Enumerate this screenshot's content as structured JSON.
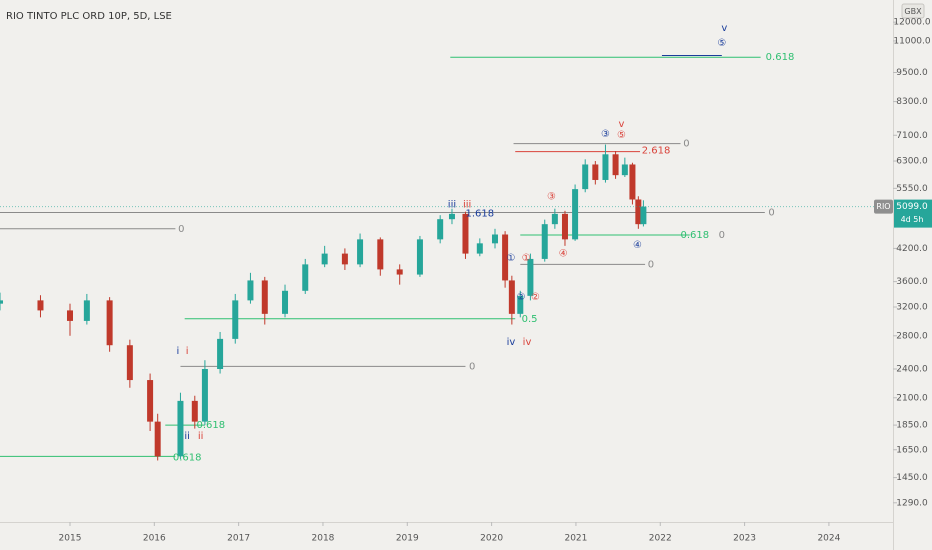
{
  "chart_data": {
    "type": "candlestick",
    "title": "RIO TINTO PLC ORD 10P, 5D, LSE",
    "symbol": "RIO",
    "currency": "GBX",
    "countdown": "4d 5h",
    "last_price": {
      "value": 5099,
      "label": "5099.0"
    },
    "log_scale": true,
    "up_color": "#26a69a",
    "down_color": "#c0392b",
    "x": [
      2014.17,
      2014.65,
      2015.0,
      2015.2,
      2015.47,
      2015.71,
      2015.95,
      2016.04,
      2016.31,
      2016.48,
      2016.6,
      2016.78,
      2016.96,
      2017.14,
      2017.31,
      2017.55,
      2017.79,
      2018.02,
      2018.26,
      2018.44,
      2018.68,
      2018.91,
      2019.15,
      2019.39,
      2019.53,
      2019.69,
      2019.86,
      2020.04,
      2020.16,
      2020.24,
      2020.34,
      2020.46,
      2020.63,
      2020.75,
      2020.87,
      2020.99,
      2021.11,
      2021.23,
      2021.35,
      2021.47,
      2021.58,
      2021.67,
      2021.74,
      2021.8
    ],
    "open": [
      3250,
      3300,
      3150,
      3000,
      3300,
      2680,
      2280,
      1880,
      1600,
      2070,
      1880,
      2400,
      2760,
      3300,
      3620,
      3100,
      3450,
      3900,
      4100,
      3900,
      4380,
      3810,
      3720,
      4380,
      4810,
      4930,
      4100,
      4300,
      4480,
      3620,
      3100,
      3370,
      4000,
      4700,
      4930,
      4380,
      5530,
      6200,
      5770,
      6500,
      5900,
      6200,
      5270,
      4700
    ],
    "high": [
      3420,
      3380,
      3250,
      3400,
      3350,
      2750,
      2350,
      1950,
      2150,
      2120,
      2500,
      2850,
      3400,
      3750,
      3680,
      3550,
      4000,
      4250,
      4200,
      4500,
      4420,
      3900,
      4450,
      4900,
      5050,
      4980,
      4400,
      4600,
      4550,
      3700,
      3450,
      4100,
      4800,
      5050,
      5000,
      5650,
      6350,
      6300,
      6800,
      6600,
      6400,
      6250,
      5350,
      5250
    ],
    "low": [
      3150,
      3050,
      2800,
      2950,
      2600,
      2200,
      1800,
      1570,
      1580,
      1820,
      1850,
      2350,
      2700,
      3250,
      2950,
      3050,
      3400,
      3850,
      3800,
      3850,
      3700,
      3550,
      3680,
      4300,
      4700,
      4000,
      4050,
      4200,
      3500,
      2950,
      3050,
      3300,
      3950,
      4600,
      4250,
      4350,
      5450,
      5650,
      5700,
      5800,
      5850,
      5150,
      4600,
      4650
    ],
    "close": [
      3300,
      3150,
      3000,
      3300,
      2680,
      2280,
      1880,
      1600,
      2070,
      1880,
      2400,
      2760,
      3300,
      3620,
      3100,
      3450,
      3900,
      4100,
      3900,
      4380,
      3810,
      3720,
      4380,
      4810,
      4930,
      4100,
      4300,
      4480,
      3620,
      3100,
      3370,
      4000,
      4700,
      4930,
      4380,
      5530,
      6200,
      5770,
      6500,
      5900,
      6200,
      5270,
      4700,
      5099
    ],
    "xlim": [
      2014.17,
      2024.76
    ],
    "xticks": [
      2015,
      2016,
      2017,
      2018,
      2019,
      2020,
      2021,
      2022,
      2023,
      2024
    ],
    "ylim": [
      1180,
      13300
    ],
    "yticks": [
      {
        "value": 1290,
        "label": "1290.0"
      },
      {
        "value": 1450,
        "label": "1450.0"
      },
      {
        "value": 1650,
        "label": "1650.0"
      },
      {
        "value": 1850,
        "label": "1850.0"
      },
      {
        "value": 2100,
        "label": "2100.0"
      },
      {
        "value": 2400,
        "label": "2400.0"
      },
      {
        "value": 2800,
        "label": "2800.0"
      },
      {
        "value": 3200,
        "label": "3200.0"
      },
      {
        "value": 3600,
        "label": "3600.0"
      },
      {
        "value": 4200,
        "label": "4200.0"
      },
      {
        "value": 5550,
        "label": "5550.0"
      },
      {
        "value": 6300,
        "label": "6300.0"
      },
      {
        "value": 7100,
        "label": "7100.0"
      },
      {
        "value": 8300,
        "label": "8300.0"
      },
      {
        "value": 9500,
        "label": "9500.0"
      },
      {
        "value": 11000,
        "label": "11000.0"
      },
      {
        "value": 12000,
        "label": "12000.0"
      }
    ],
    "levels": [
      {
        "x": [
          2019.51,
          2023.19
        ],
        "y": 10200,
        "color": "#2fbf71"
      },
      {
        "x": [
          2022.02,
          2022.73
        ],
        "y": 10280,
        "color": "#1a3d9b"
      },
      {
        "x": [
          2020.26,
          2022.24
        ],
        "y": 6830,
        "color": "#8a8a8a"
      },
      {
        "x": [
          2020.28,
          2021.76
        ],
        "y": 6580,
        "color": "#d9423a"
      },
      {
        "x": [
          2014.17,
          2023.24
        ],
        "y": 4960,
        "color": "#8a8a8a"
      },
      {
        "x": [
          2014.17,
          2016.25
        ],
        "y": 4600,
        "color": "#8a8a8a"
      },
      {
        "x": [
          2020.34,
          2022.35
        ],
        "y": 4470,
        "color": "#2fbf71"
      },
      {
        "x": [
          2020.34,
          2021.82
        ],
        "y": 3900,
        "color": "#8a8a8a"
      },
      {
        "x": [
          2016.36,
          2020.28
        ],
        "y": 3030,
        "color": "#2fbf71"
      },
      {
        "x": [
          2016.31,
          2019.69
        ],
        "y": 2430,
        "color": "#8a8a8a"
      },
      {
        "x": [
          2016.13,
          2016.6
        ],
        "y": 1850,
        "color": "#2fbf71"
      },
      {
        "x": [
          2014.17,
          2016.25
        ],
        "y": 1600,
        "color": "#2fbf71"
      }
    ],
    "annotations": [
      {
        "text": "v",
        "x": 2022.76,
        "y": 11680,
        "color": "#1a3d9b"
      },
      {
        "text": "⑤",
        "x": 2022.73,
        "y": 10890,
        "color": "#1a3d9b"
      },
      {
        "text": "0.618",
        "x": 2023.42,
        "y": 10200,
        "color": "#2fbf71"
      },
      {
        "text": "v",
        "x": 2021.54,
        "y": 7480,
        "color": "#d9423a"
      },
      {
        "text": "③",
        "x": 2021.35,
        "y": 7150,
        "color": "#1a3d9b"
      },
      {
        "text": "⑤",
        "x": 2021.54,
        "y": 7110,
        "color": "#d9423a"
      },
      {
        "text": "0",
        "x": 2022.31,
        "y": 6830,
        "color": "#8a8a8a"
      },
      {
        "text": "2.618",
        "x": 2021.95,
        "y": 6620,
        "color": "#d9423a"
      },
      {
        "text": "③",
        "x": 2020.71,
        "y": 5340,
        "color": "#d9423a"
      },
      {
        "text": "iii",
        "x": 2019.53,
        "y": 5150,
        "color": "#1a3d9b"
      },
      {
        "text": "iii",
        "x": 2019.71,
        "y": 5150,
        "color": "#d9423a"
      },
      {
        "text": "1.618",
        "x": 2019.86,
        "y": 4940,
        "color": "#1a3d9b"
      },
      {
        "text": "0",
        "x": 2023.32,
        "y": 4960,
        "color": "#8a8a8a"
      },
      {
        "text": "0",
        "x": 2016.32,
        "y": 4600,
        "color": "#8a8a8a"
      },
      {
        "text": "0.618",
        "x": 2022.41,
        "y": 4470,
        "color": "#2fbf71"
      },
      {
        "text": "0",
        "x": 2022.73,
        "y": 4470,
        "color": "#8a8a8a"
      },
      {
        "text": "④",
        "x": 2021.73,
        "y": 4270,
        "color": "#1a3d9b"
      },
      {
        "text": "④",
        "x": 2020.85,
        "y": 4100,
        "color": "#d9423a"
      },
      {
        "text": "①",
        "x": 2020.23,
        "y": 4020,
        "color": "#1a3d9b"
      },
      {
        "text": "①",
        "x": 2020.41,
        "y": 4020,
        "color": "#d9423a"
      },
      {
        "text": "0",
        "x": 2021.89,
        "y": 3900,
        "color": "#8a8a8a"
      },
      {
        "text": "②",
        "x": 2020.35,
        "y": 3350,
        "color": "#1a3d9b"
      },
      {
        "text": "②",
        "x": 2020.52,
        "y": 3350,
        "color": "#d9423a"
      },
      {
        "text": "0.5",
        "x": 2020.45,
        "y": 3030,
        "color": "#2fbf71"
      },
      {
        "text": "iv",
        "x": 2020.23,
        "y": 2720,
        "color": "#1a3d9b"
      },
      {
        "text": "iv",
        "x": 2020.42,
        "y": 2720,
        "color": "#d9423a"
      },
      {
        "text": "i",
        "x": 2016.28,
        "y": 2610,
        "color": "#1a3d9b"
      },
      {
        "text": "i",
        "x": 2016.39,
        "y": 2610,
        "color": "#d9423a"
      },
      {
        "text": "0",
        "x": 2019.77,
        "y": 2430,
        "color": "#8a8a8a"
      },
      {
        "text": "0.618",
        "x": 2016.67,
        "y": 1850,
        "color": "#2fbf71"
      },
      {
        "text": "ii",
        "x": 2016.39,
        "y": 1760,
        "color": "#1a3d9b"
      },
      {
        "text": "ii",
        "x": 2016.55,
        "y": 1760,
        "color": "#d9423a"
      },
      {
        "text": "0.618",
        "x": 2016.39,
        "y": 1590,
        "color": "#2fbf71"
      }
    ]
  }
}
